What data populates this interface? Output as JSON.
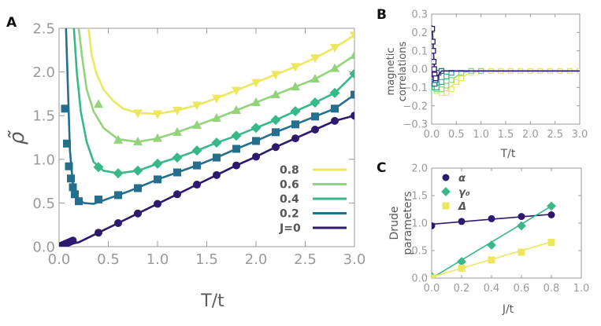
{
  "colors": {
    "j08": "#ece75e",
    "j06": "#93d47a",
    "j04": "#36b887",
    "j02": "#246e8e",
    "j00": "#2e1a6c",
    "axis": "#9a9a9a",
    "text": "#5a5a5a"
  },
  "chart_data": [
    {
      "id": "A",
      "type": "line",
      "panel_label": "A",
      "xlabel": "T/t",
      "ylabel": "ρ̃",
      "xlim": [
        0,
        3
      ],
      "ylim": [
        0,
        2.5
      ],
      "xticks": [
        "0.0",
        "0.5",
        "1.0",
        "1.5",
        "2.0",
        "2.5",
        "3.0"
      ],
      "yticks": [
        "0.0",
        "0.5",
        "1.0",
        "1.5",
        "2.0",
        "2.5"
      ],
      "legend_position": "bottom-right",
      "series": [
        {
          "name": "0.8",
          "color": "#ece75e",
          "marker": "triangle-down",
          "line": [
            [
              0.3,
              2.5
            ],
            [
              0.33,
              2.2
            ],
            [
              0.38,
              1.98
            ],
            [
              0.45,
              1.8
            ],
            [
              0.55,
              1.67
            ],
            [
              0.65,
              1.58
            ],
            [
              0.8,
              1.53
            ],
            [
              1.0,
              1.52
            ],
            [
              1.2,
              1.56
            ],
            [
              1.4,
              1.62
            ],
            [
              1.6,
              1.7
            ],
            [
              1.8,
              1.79
            ],
            [
              2.0,
              1.88
            ],
            [
              2.2,
              1.97
            ],
            [
              2.4,
              2.06
            ],
            [
              2.6,
              2.16
            ],
            [
              2.8,
              2.28
            ],
            [
              3.0,
              2.42
            ]
          ],
          "x": [
            0.8,
            1.0,
            1.2,
            1.4,
            1.6,
            1.8,
            2.0,
            2.2,
            2.4,
            2.6,
            2.8,
            3.0
          ],
          "y": [
            1.53,
            1.52,
            1.56,
            1.62,
            1.7,
            1.79,
            1.88,
            1.97,
            2.06,
            2.16,
            2.28,
            2.42
          ]
        },
        {
          "name": "0.6",
          "color": "#93d47a",
          "marker": "triangle-up",
          "line": [
            [
              0.2,
              2.5
            ],
            [
              0.23,
              2.2
            ],
            [
              0.28,
              1.8
            ],
            [
              0.35,
              1.55
            ],
            [
              0.45,
              1.36
            ],
            [
              0.6,
              1.23
            ],
            [
              0.8,
              1.2
            ],
            [
              1.0,
              1.24
            ],
            [
              1.2,
              1.31
            ],
            [
              1.4,
              1.39
            ],
            [
              1.6,
              1.47
            ],
            [
              1.8,
              1.56
            ],
            [
              2.0,
              1.65
            ],
            [
              2.2,
              1.74
            ],
            [
              2.4,
              1.83
            ],
            [
              2.6,
              1.92
            ],
            [
              2.8,
              2.04
            ],
            [
              3.0,
              2.19
            ]
          ],
          "x": [
            0.4,
            0.6,
            0.8,
            1.0,
            1.2,
            1.4,
            1.6,
            1.8,
            2.0,
            2.2,
            2.4,
            2.6,
            2.8,
            3.0
          ],
          "y": [
            1.63,
            1.22,
            1.2,
            1.24,
            1.31,
            1.39,
            1.47,
            1.56,
            1.65,
            1.74,
            1.83,
            1.92,
            2.04,
            2.19
          ]
        },
        {
          "name": "0.4",
          "color": "#36b887",
          "marker": "diamond",
          "line": [
            [
              0.15,
              2.5
            ],
            [
              0.18,
              2.0
            ],
            [
              0.22,
              1.55
            ],
            [
              0.28,
              1.2
            ],
            [
              0.35,
              0.97
            ],
            [
              0.45,
              0.87
            ],
            [
              0.6,
              0.84
            ],
            [
              0.8,
              0.87
            ],
            [
              1.0,
              0.95
            ],
            [
              1.2,
              1.02
            ],
            [
              1.4,
              1.1
            ],
            [
              1.6,
              1.19
            ],
            [
              1.8,
              1.27
            ],
            [
              2.0,
              1.36
            ],
            [
              2.2,
              1.45
            ],
            [
              2.4,
              1.55
            ],
            [
              2.6,
              1.65
            ],
            [
              2.8,
              1.76
            ],
            [
              3.0,
              1.98
            ]
          ],
          "x": [
            0.4,
            0.6,
            0.8,
            1.0,
            1.2,
            1.4,
            1.6,
            1.8,
            2.0,
            2.2,
            2.4,
            2.6,
            2.8,
            3.0
          ],
          "y": [
            0.91,
            0.84,
            0.87,
            0.95,
            1.02,
            1.1,
            1.19,
            1.27,
            1.36,
            1.45,
            1.55,
            1.65,
            1.76,
            1.98
          ]
        },
        {
          "name": "0.2",
          "color": "#246e8e",
          "marker": "square",
          "line": [
            [
              0.07,
              2.5
            ],
            [
              0.09,
              1.8
            ],
            [
              0.11,
              1.1
            ],
            [
              0.14,
              0.72
            ],
            [
              0.18,
              0.56
            ],
            [
              0.25,
              0.5
            ],
            [
              0.35,
              0.49
            ],
            [
              0.5,
              0.55
            ],
            [
              0.7,
              0.63
            ],
            [
              1.0,
              0.77
            ],
            [
              1.2,
              0.85
            ],
            [
              1.4,
              0.93
            ],
            [
              1.6,
              1.02
            ],
            [
              1.8,
              1.12
            ],
            [
              2.0,
              1.21
            ],
            [
              2.2,
              1.31
            ],
            [
              2.4,
              1.4
            ],
            [
              2.6,
              1.49
            ],
            [
              2.8,
              1.58
            ],
            [
              3.0,
              1.74
            ]
          ],
          "x": [
            0.06,
            0.08,
            0.1,
            0.12,
            0.14,
            0.16,
            0.2,
            0.4,
            0.6,
            0.8,
            1.0,
            1.2,
            1.4,
            1.6,
            1.8,
            2.0,
            2.2,
            2.4,
            2.6,
            2.8,
            3.0
          ],
          "y": [
            1.58,
            1.18,
            0.92,
            0.78,
            0.68,
            0.6,
            0.52,
            0.54,
            0.59,
            0.67,
            0.77,
            0.85,
            0.93,
            1.02,
            1.12,
            1.21,
            1.31,
            1.4,
            1.49,
            1.58,
            1.74
          ]
        },
        {
          "name": "J=0",
          "color": "#2e1a6c",
          "marker": "circle",
          "line": [
            [
              0.0,
              0.0
            ],
            [
              0.2,
              0.05
            ],
            [
              0.4,
              0.16
            ],
            [
              0.6,
              0.27
            ],
            [
              0.8,
              0.38
            ],
            [
              1.0,
              0.49
            ],
            [
              1.2,
              0.6
            ],
            [
              1.4,
              0.71
            ],
            [
              1.6,
              0.82
            ],
            [
              1.8,
              0.93
            ],
            [
              2.0,
              1.03
            ],
            [
              2.2,
              1.14
            ],
            [
              2.4,
              1.24
            ],
            [
              2.6,
              1.34
            ],
            [
              2.8,
              1.44
            ],
            [
              3.0,
              1.5
            ]
          ],
          "x": [
            0.02,
            0.04,
            0.06,
            0.08,
            0.1,
            0.12,
            0.14,
            0.4,
            0.6,
            0.8,
            1.0,
            1.2,
            1.4,
            1.6,
            1.8,
            2.0,
            2.2,
            2.4,
            2.6,
            2.8,
            3.0
          ],
          "y": [
            0.01,
            0.02,
            0.03,
            0.04,
            0.05,
            0.06,
            0.07,
            0.16,
            0.27,
            0.38,
            0.49,
            0.6,
            0.71,
            0.82,
            0.93,
            1.03,
            1.14,
            1.24,
            1.34,
            1.44,
            1.5
          ]
        }
      ],
      "legend": [
        {
          "label": "0.8",
          "color": "#ece75e"
        },
        {
          "label": "0.6",
          "color": "#93d47a"
        },
        {
          "label": "0.4",
          "color": "#36b887"
        },
        {
          "label": "0.2",
          "color": "#246e8e"
        },
        {
          "label": "J=0",
          "color": "#2e1a6c"
        }
      ]
    },
    {
      "id": "B",
      "type": "line",
      "panel_label": "B",
      "xlabel": "T/t",
      "ylabel_lines": [
        "magnetic",
        "correlations"
      ],
      "xlim": [
        0,
        3
      ],
      "ylim": [
        -0.3,
        0.3
      ],
      "xticks": [
        "0.0",
        "0.5",
        "1.0",
        "1.5",
        "2.0",
        "2.5",
        "3.0"
      ],
      "yticks": [
        "−0.3",
        "−0.2",
        "−0.1",
        "0.0",
        "0.1",
        "0.2",
        "0.3"
      ],
      "series": [
        {
          "name": "0.8",
          "color": "#ece75e",
          "marker": "square-open",
          "line": [
            [
              0.0,
              -0.11
            ],
            [
              0.15,
              -0.13
            ],
            [
              0.3,
              -0.12
            ],
            [
              0.5,
              -0.07
            ],
            [
              0.7,
              -0.03
            ],
            [
              1.0,
              -0.01
            ],
            [
              3.0,
              -0.01
            ]
          ],
          "x": [
            0.1,
            0.2,
            0.3,
            0.4,
            0.5,
            0.6,
            0.8,
            1.0,
            1.2,
            1.4,
            1.6,
            1.8,
            2.0,
            2.2,
            2.4,
            2.6,
            2.8,
            3.0
          ],
          "y": [
            -0.12,
            -0.13,
            -0.13,
            -0.11,
            -0.07,
            -0.05,
            -0.02,
            -0.01,
            -0.01,
            -0.01,
            -0.01,
            -0.01,
            -0.01,
            -0.01,
            -0.01,
            -0.01,
            -0.01,
            -0.01
          ]
        },
        {
          "name": "0.6",
          "color": "#93d47a",
          "marker": "square-open",
          "line": [
            [
              0.0,
              -0.1
            ],
            [
              0.1,
              -0.12
            ],
            [
              0.25,
              -0.1
            ],
            [
              0.4,
              -0.06
            ],
            [
              0.6,
              -0.02
            ],
            [
              0.8,
              -0.01
            ],
            [
              3.0,
              -0.01
            ]
          ],
          "x": [
            0.1,
            0.2,
            0.3,
            0.4,
            0.6,
            0.8,
            1.0
          ],
          "y": [
            -0.11,
            -0.11,
            -0.09,
            -0.06,
            -0.02,
            -0.01,
            -0.01
          ]
        },
        {
          "name": "0.4",
          "color": "#36b887",
          "marker": "square-open",
          "line": [
            [
              0.0,
              -0.09
            ],
            [
              0.08,
              -0.11
            ],
            [
              0.18,
              -0.08
            ],
            [
              0.3,
              -0.04
            ],
            [
              0.45,
              -0.01
            ],
            [
              3.0,
              -0.01
            ]
          ],
          "x": [
            0.06,
            0.1,
            0.2,
            0.3,
            0.4
          ],
          "y": [
            -0.1,
            -0.1,
            -0.07,
            -0.04,
            -0.02
          ]
        },
        {
          "name": "0.2",
          "color": "#246e8e",
          "marker": "square-open",
          "line": [
            [
              0.0,
              -0.06
            ],
            [
              0.05,
              -0.08
            ],
            [
              0.12,
              -0.04
            ],
            [
              0.2,
              -0.01
            ],
            [
              3.0,
              -0.01
            ]
          ],
          "x": [
            0.04,
            0.06,
            0.08,
            0.1,
            0.14,
            0.2
          ],
          "y": [
            -0.07,
            -0.08,
            -0.06,
            -0.04,
            -0.02,
            -0.01
          ]
        },
        {
          "name": "J=0",
          "color": "#2e1a6c",
          "marker": "square-open",
          "line": [
            [
              0.0,
              0.24
            ],
            [
              0.02,
              0.18
            ],
            [
              0.04,
              0.08
            ],
            [
              0.06,
              -0.02
            ],
            [
              0.08,
              -0.06
            ],
            [
              0.12,
              -0.04
            ],
            [
              0.2,
              -0.01
            ],
            [
              3.0,
              -0.01
            ]
          ],
          "x": [
            0.01,
            0.02,
            0.03,
            0.04,
            0.05,
            0.06,
            0.08
          ],
          "y": [
            0.22,
            0.15,
            0.1,
            0.04,
            0.0,
            -0.03,
            -0.05
          ]
        }
      ]
    },
    {
      "id": "C",
      "type": "scatter",
      "panel_label": "C",
      "xlabel": "J/t",
      "ylabel_lines": [
        "Drude",
        "parameters"
      ],
      "xlim": [
        0,
        1.0
      ],
      "ylim": [
        0,
        2.0
      ],
      "xticks": [
        "0.0",
        "0.2",
        "0.4",
        "0.6",
        "0.8",
        "1.0"
      ],
      "yticks": [
        "0.0",
        "0.5",
        "1.0",
        "1.5",
        "2.0"
      ],
      "legend_position": "top-left",
      "series": [
        {
          "name": "α",
          "color": "#2e1a6c",
          "marker": "circle",
          "x": [
            0.0,
            0.2,
            0.4,
            0.6,
            0.8
          ],
          "y": [
            0.95,
            1.03,
            1.08,
            1.12,
            1.15
          ],
          "fit": [
            [
              0.0,
              0.98
            ],
            [
              0.8,
              1.16
            ]
          ]
        },
        {
          "name": "γ₀",
          "color": "#36b887",
          "marker": "diamond",
          "x": [
            0.0,
            0.2,
            0.4,
            0.6,
            0.8
          ],
          "y": [
            0.03,
            0.3,
            0.6,
            0.95,
            1.31
          ],
          "fit": [
            [
              0.0,
              0.0
            ],
            [
              0.8,
              1.31
            ]
          ]
        },
        {
          "name": "Δ",
          "color": "#ece75e",
          "marker": "square",
          "x": [
            0.0,
            0.2,
            0.4,
            0.6,
            0.8
          ],
          "y": [
            0.0,
            0.18,
            0.33,
            0.47,
            0.65
          ],
          "fit": [
            [
              0.0,
              0.02
            ],
            [
              0.8,
              0.66
            ]
          ]
        }
      ]
    }
  ]
}
